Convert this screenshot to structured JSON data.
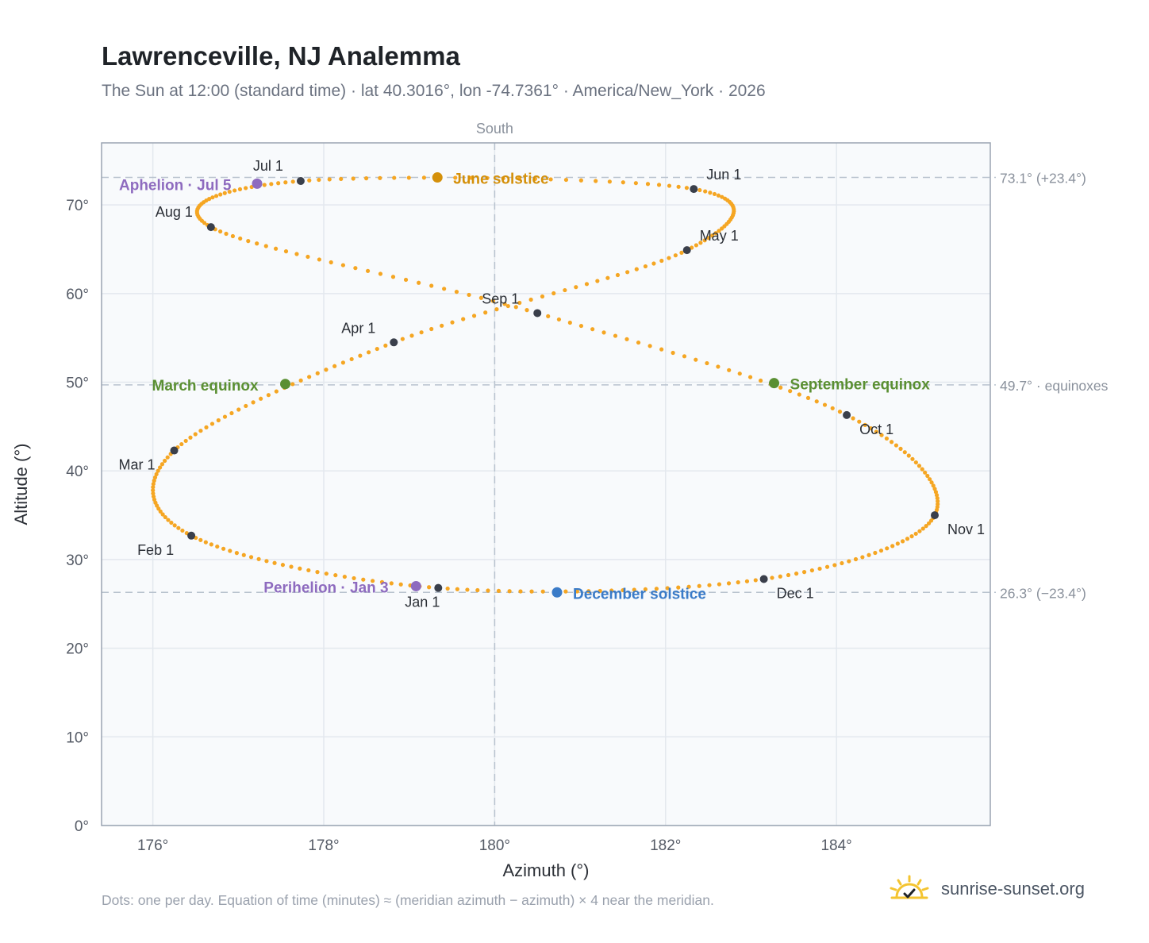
{
  "title": "Lawrenceville, NJ Analemma",
  "subtitle": "The Sun at 12:00 (standard time) · lat 40.3016°, lon -74.7361° · America/New_York · 2026",
  "footnote": "Dots: one per day. Equation of time (minutes) ≈ (meridian azimuth − azimuth) × 4 near the meridian.",
  "brand": {
    "name": "sunrise-sunset.org",
    "icon": "sun-check-icon",
    "icon_color": "#f4c430"
  },
  "colors": {
    "curve": "#f5a623",
    "month": "#3a3f4b",
    "perihelion_aphelion": "#8e6bbf",
    "june": "#d4900a",
    "december": "#3a7bc8",
    "equinox": "#5a8f32",
    "refline": "#b8c2ce",
    "grid": "#e3e8ee",
    "plot_bg": "#f8fafc",
    "frame": "#9aa4b2"
  },
  "chart_data": {
    "type": "scatter",
    "xlabel": "Azimuth (°)",
    "ylabel": "Altitude (°)",
    "top_label": "South",
    "xlim": [
      175.4,
      185.8
    ],
    "ylim": [
      0,
      77
    ],
    "xticks": [
      176,
      178,
      180,
      182,
      184
    ],
    "xtick_labels": [
      "176°",
      "178°",
      "180°",
      "182°",
      "184°"
    ],
    "yticks": [
      0,
      10,
      20,
      30,
      40,
      50,
      60,
      70
    ],
    "ytick_labels": [
      "0°",
      "10°",
      "20°",
      "30°",
      "40°",
      "50°",
      "60°",
      "70°"
    ],
    "grid": true,
    "meridian_azimuth": 180,
    "reference_lines": [
      {
        "y": 73.1,
        "label": "73.1° (+23.4°)"
      },
      {
        "y": 49.7,
        "label": "49.7° · equinoxes"
      },
      {
        "y": 26.3,
        "label": "26.3° (−23.4°)"
      }
    ],
    "analemma_anchors": [
      {
        "x": 179.34,
        "y": 26.8
      },
      {
        "x": 176.45,
        "y": 32.7
      },
      {
        "x": 176.25,
        "y": 42.3
      },
      {
        "x": 178.82,
        "y": 54.5
      },
      {
        "x": 182.25,
        "y": 64.9
      },
      {
        "x": 182.33,
        "y": 71.8
      },
      {
        "x": 177.73,
        "y": 72.7
      },
      {
        "x": 176.68,
        "y": 67.5
      },
      {
        "x": 180.5,
        "y": 57.8
      },
      {
        "x": 184.12,
        "y": 46.3
      },
      {
        "x": 185.15,
        "y": 35.0
      },
      {
        "x": 183.15,
        "y": 27.8
      }
    ],
    "month_points": [
      {
        "label": "Jan 1",
        "x": 179.34,
        "y": 26.8
      },
      {
        "label": "Feb 1",
        "x": 176.45,
        "y": 32.7
      },
      {
        "label": "Mar 1",
        "x": 176.25,
        "y": 42.3
      },
      {
        "label": "Apr 1",
        "x": 178.82,
        "y": 54.5
      },
      {
        "label": "May 1",
        "x": 182.25,
        "y": 64.9
      },
      {
        "label": "Jun 1",
        "x": 182.33,
        "y": 71.8
      },
      {
        "label": "Jul 1",
        "x": 177.73,
        "y": 72.7
      },
      {
        "label": "Aug 1",
        "x": 176.68,
        "y": 67.5
      },
      {
        "label": "Sep 1",
        "x": 180.5,
        "y": 57.8
      },
      {
        "label": "Oct 1",
        "x": 184.12,
        "y": 46.3
      },
      {
        "label": "Nov 1",
        "x": 185.15,
        "y": 35.0
      },
      {
        "label": "Dec 1",
        "x": 183.15,
        "y": 27.8
      }
    ],
    "events": [
      {
        "label": "Perihelion · Jan 3",
        "x": 179.08,
        "y": 27.0,
        "kind": "perihelion_aphelion"
      },
      {
        "label": "Aphelion · Jul 5",
        "x": 177.22,
        "y": 72.4,
        "kind": "perihelion_aphelion"
      },
      {
        "label": "June solstice",
        "x": 179.33,
        "y": 73.1,
        "kind": "june"
      },
      {
        "label": "December solstice",
        "x": 180.73,
        "y": 26.3,
        "kind": "december"
      },
      {
        "label": "March equinox",
        "x": 177.55,
        "y": 49.8,
        "kind": "equinox"
      },
      {
        "label": "September equinox",
        "x": 183.27,
        "y": 49.9,
        "kind": "equinox"
      }
    ]
  }
}
